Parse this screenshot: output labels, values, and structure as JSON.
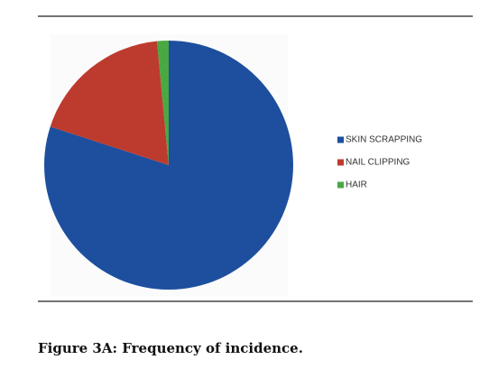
{
  "chart_data": {
    "type": "pie",
    "categories": [
      "SKIN SCRAPPING",
      "NAIL CLIPPING",
      "HAIR"
    ],
    "values": [
      80,
      18.5,
      1.5
    ],
    "colors": [
      "#1d4f9e",
      "#bd3b2e",
      "#4aa843"
    ],
    "caption": "Figure 3A: Frequency of incidence."
  }
}
